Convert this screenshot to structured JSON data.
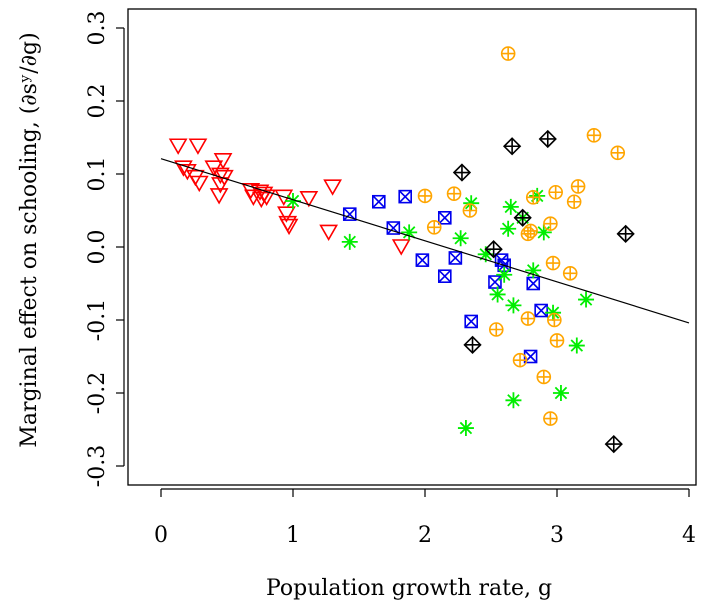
{
  "chart_data": {
    "type": "scatter",
    "title": "",
    "xlabel": "Population growth rate, g",
    "ylabel": "Marginal effect on schooling, (∂sʸ/∂g)",
    "xlim": [
      -0.1,
      4.1
    ],
    "ylim": [
      -0.32,
      0.32
    ],
    "xticks": [
      "0",
      "1",
      "2",
      "3",
      "4"
    ],
    "yticks": [
      "-0.3",
      "-0.2",
      "-0.1",
      "0.0",
      "0.1",
      "0.2",
      "0.3"
    ],
    "xtick_values": [
      0,
      1,
      2,
      3,
      4
    ],
    "ytick_values": [
      -0.3,
      -0.2,
      -0.1,
      0.0,
      0.1,
      0.2,
      0.3
    ],
    "grid": false,
    "legend": "none",
    "series": [
      {
        "marker": "triangle-down",
        "color": "#ff0000",
        "points": [
          [
            0.13,
            0.138
          ],
          [
            0.28,
            0.138
          ],
          [
            0.17,
            0.108
          ],
          [
            0.2,
            0.103
          ],
          [
            0.26,
            0.095
          ],
          [
            0.29,
            0.087
          ],
          [
            0.4,
            0.108
          ],
          [
            0.47,
            0.118
          ],
          [
            0.45,
            0.098
          ],
          [
            0.48,
            0.095
          ],
          [
            0.45,
            0.085
          ],
          [
            0.44,
            0.07
          ],
          [
            0.68,
            0.077
          ],
          [
            0.7,
            0.068
          ],
          [
            0.75,
            0.075
          ],
          [
            0.78,
            0.072
          ],
          [
            0.76,
            0.065
          ],
          [
            0.8,
            0.068
          ],
          [
            0.93,
            0.068
          ],
          [
            0.95,
            0.045
          ],
          [
            0.96,
            0.032
          ],
          [
            0.97,
            0.028
          ],
          [
            1.12,
            0.066
          ],
          [
            1.3,
            0.082
          ],
          [
            1.27,
            0.02
          ],
          [
            1.82,
            0.0
          ]
        ]
      },
      {
        "marker": "square-x",
        "color": "#0000ee",
        "points": [
          [
            1.43,
            0.045
          ],
          [
            1.65,
            0.062
          ],
          [
            1.76,
            0.026
          ],
          [
            1.85,
            0.069
          ],
          [
            1.98,
            -0.018
          ],
          [
            2.15,
            0.04
          ],
          [
            2.15,
            -0.04
          ],
          [
            2.23,
            -0.015
          ],
          [
            2.35,
            -0.102
          ],
          [
            2.53,
            -0.048
          ],
          [
            2.58,
            -0.018
          ],
          [
            2.6,
            -0.025
          ],
          [
            2.82,
            -0.05
          ],
          [
            2.88,
            -0.087
          ],
          [
            2.8,
            -0.15
          ]
        ]
      },
      {
        "marker": "asterisk",
        "color": "#00ee00",
        "points": [
          [
            1.0,
            0.063
          ],
          [
            1.43,
            0.007
          ],
          [
            1.88,
            0.02
          ],
          [
            2.27,
            0.012
          ],
          [
            2.35,
            0.06
          ],
          [
            2.46,
            -0.01
          ],
          [
            2.55,
            -0.065
          ],
          [
            2.6,
            -0.038
          ],
          [
            2.63,
            0.025
          ],
          [
            2.65,
            0.055
          ],
          [
            2.67,
            -0.08
          ],
          [
            2.74,
            0.04
          ],
          [
            2.82,
            -0.032
          ],
          [
            2.85,
            0.07
          ],
          [
            2.9,
            0.02
          ],
          [
            2.97,
            -0.09
          ],
          [
            3.22,
            -0.072
          ],
          [
            3.15,
            -0.135
          ],
          [
            3.03,
            -0.2
          ],
          [
            2.67,
            -0.21
          ],
          [
            2.31,
            -0.248
          ]
        ]
      },
      {
        "marker": "circle-plus",
        "color": "#ffa500",
        "points": [
          [
            2.0,
            0.07
          ],
          [
            2.07,
            0.027
          ],
          [
            2.22,
            0.073
          ],
          [
            2.34,
            0.05
          ],
          [
            2.54,
            -0.113
          ],
          [
            2.63,
            0.265
          ],
          [
            2.72,
            -0.155
          ],
          [
            2.78,
            -0.098
          ],
          [
            2.78,
            0.018
          ],
          [
            2.8,
            0.022
          ],
          [
            2.82,
            0.068
          ],
          [
            2.9,
            -0.178
          ],
          [
            2.95,
            -0.235
          ],
          [
            2.95,
            0.032
          ],
          [
            2.97,
            -0.022
          ],
          [
            2.99,
            0.075
          ],
          [
            2.98,
            -0.1
          ],
          [
            3.0,
            -0.128
          ],
          [
            3.1,
            -0.036
          ],
          [
            3.13,
            0.062
          ],
          [
            3.16,
            0.083
          ],
          [
            3.28,
            0.153
          ],
          [
            3.46,
            0.129
          ]
        ]
      },
      {
        "marker": "diamond-plus",
        "color": "#000000",
        "points": [
          [
            2.28,
            0.102
          ],
          [
            2.66,
            0.138
          ],
          [
            2.93,
            0.148
          ],
          [
            2.52,
            -0.003
          ],
          [
            2.74,
            0.04
          ],
          [
            2.36,
            -0.134
          ],
          [
            3.52,
            0.018
          ],
          [
            3.43,
            -0.27
          ]
        ]
      }
    ],
    "fit_line": {
      "x": [
        0,
        4
      ],
      "y": [
        0.121,
        -0.104
      ]
    }
  }
}
